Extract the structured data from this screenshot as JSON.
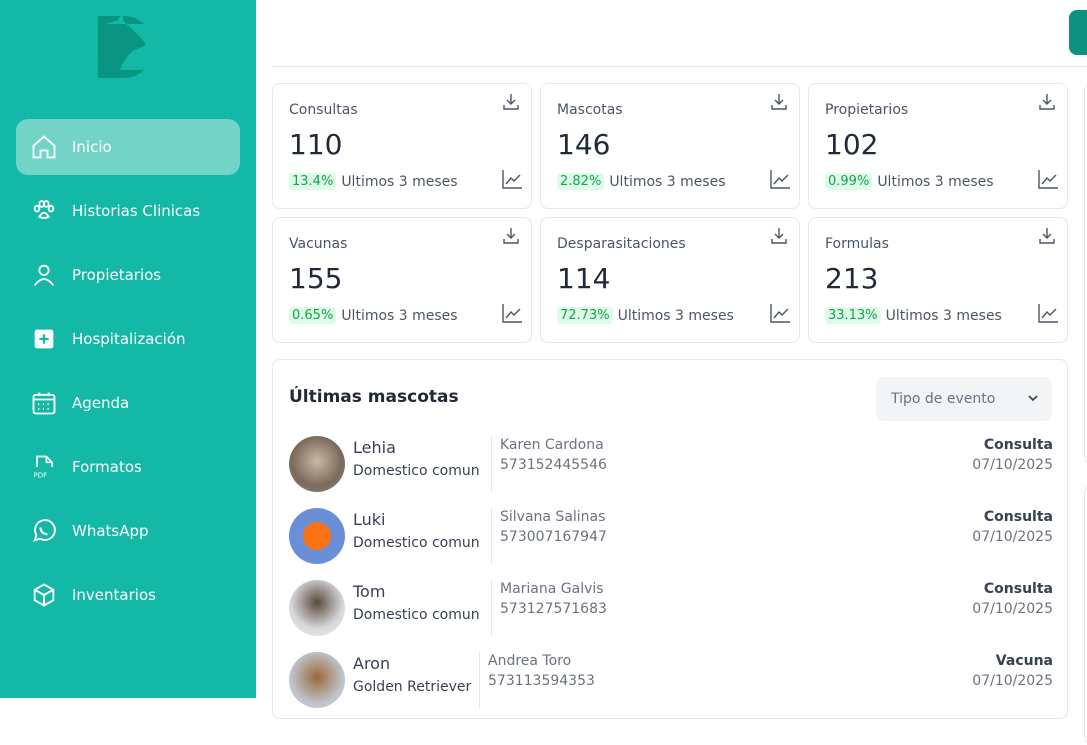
{
  "brand": {
    "sidebar_color": "#14b8a6",
    "active_color": "#74d3c7",
    "accent": "#0f9180"
  },
  "sidebar": {
    "items": [
      {
        "label": "Inicio",
        "icon": "home-icon",
        "active": true
      },
      {
        "label": "Historias Clinicas",
        "icon": "paw-icon"
      },
      {
        "label": "Propietarios",
        "icon": "user-icon"
      },
      {
        "label": "Hospitalización",
        "icon": "medical-plus-icon"
      },
      {
        "label": "Agenda",
        "icon": "calendar-icon"
      },
      {
        "label": "Formatos",
        "icon": "pdf-file-icon"
      },
      {
        "label": "WhatsApp",
        "icon": "whatsapp-icon"
      },
      {
        "label": "Inventarios",
        "icon": "box-icon"
      }
    ]
  },
  "stats": [
    {
      "label": "Consultas",
      "value": "110",
      "change": "13.4%",
      "period": "Ultimos 3 meses"
    },
    {
      "label": "Mascotas",
      "value": "146",
      "change": "2.82%",
      "period": "Ultimos 3 meses"
    },
    {
      "label": "Propietarios",
      "value": "102",
      "change": "0.99%",
      "period": "Ultimos 3 meses"
    },
    {
      "label": "Vacunas",
      "value": "155",
      "change": "0.65%",
      "period": "Ultimos 3 meses"
    },
    {
      "label": "Desparasitaciones",
      "value": "114",
      "change": "72.73%",
      "period": "Ultimos 3 meses"
    },
    {
      "label": "Formulas",
      "value": "213",
      "change": "33.13%",
      "period": "Ultimos 3 meses"
    }
  ],
  "pets": {
    "title": "Últimas mascotas",
    "filter": {
      "selected": "Tipo de evento"
    },
    "rows": [
      {
        "name": "Lehia",
        "breed": "Domestico comun",
        "owner": "Karen Cardona",
        "phone": "573152445546",
        "event": "Consulta",
        "date": "07/10/2025"
      },
      {
        "name": "Luki",
        "breed": "Domestico comun",
        "owner": "Silvana Salinas",
        "phone": "573007167947",
        "event": "Consulta",
        "date": "07/10/2025"
      },
      {
        "name": "Tom",
        "breed": "Domestico comun",
        "owner": "Mariana Galvis",
        "phone": "573127571683",
        "event": "Consulta",
        "date": "07/10/2025"
      },
      {
        "name": "Aron",
        "breed": "Golden Retriever",
        "owner": "Andrea Toro",
        "phone": "573113594353",
        "event": "Vacuna",
        "date": "07/10/2025"
      }
    ]
  }
}
